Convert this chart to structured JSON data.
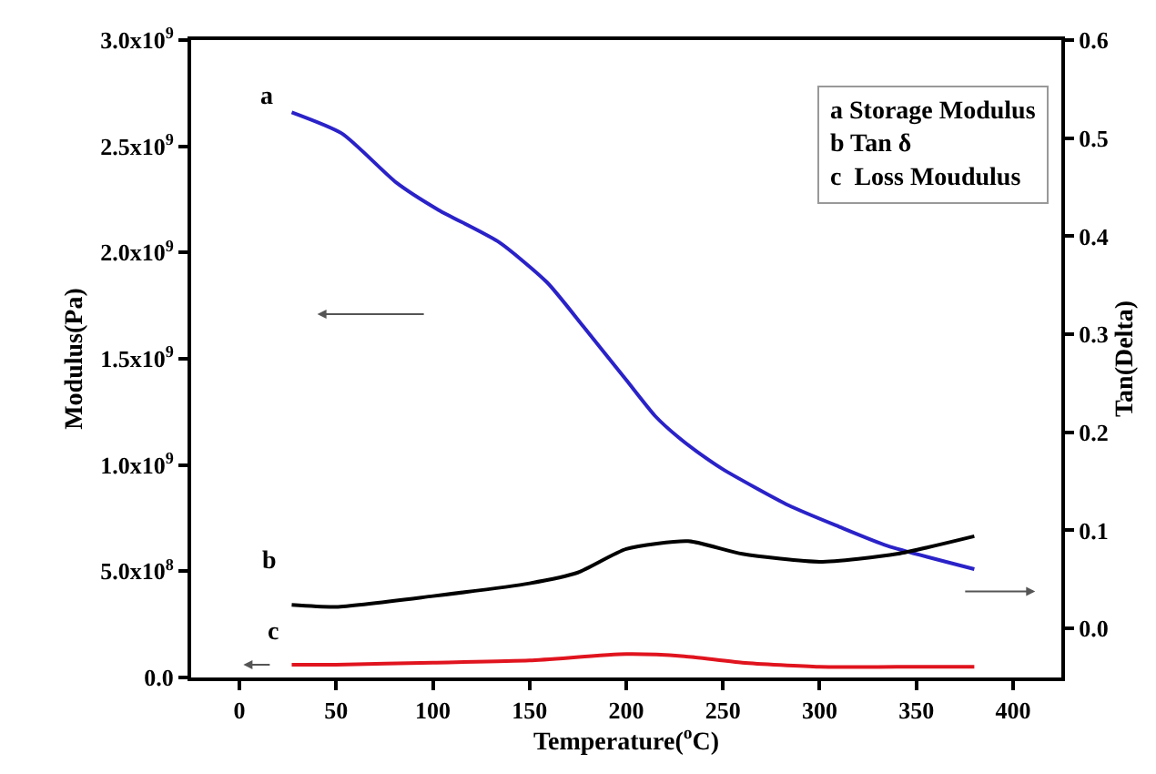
{
  "chart_data": {
    "type": "line",
    "xlabel": "Temperature($^{o}$C)",
    "ylabel": "Modulus(Pa)",
    "y2label": "Tan(Delta)",
    "xlim": [
      -25,
      425
    ],
    "xticks": [
      0,
      50,
      100,
      150,
      200,
      250,
      300,
      350,
      400
    ],
    "ylim": [
      0,
      3000000000
    ],
    "yticks": [
      {
        "value": 0,
        "label": "0.0"
      },
      {
        "value": 500000000,
        "label": "5.0x10$^{8}$"
      },
      {
        "value": 1000000000,
        "label": "1.0x10$^{9}$"
      },
      {
        "value": 1500000000,
        "label": "1.5x10$^{9}$"
      },
      {
        "value": 2000000000,
        "label": "2.0x10$^{9}$"
      },
      {
        "value": 2500000000,
        "label": "2.5x10$^{9}$"
      },
      {
        "value": 3000000000,
        "label": "3.0x10$^{9}$"
      }
    ],
    "y2lim": [
      -0.05,
      0.6
    ],
    "y2ticks": [
      {
        "value": 0,
        "label": "0.0"
      },
      0.1,
      0.2,
      0.3,
      0.4,
      0.5,
      0.6
    ],
    "series": [
      {
        "color": "#2a22c8",
        "x": [
          27,
          53,
          81,
          103,
          134,
          159,
          178,
          200,
          215,
          227,
          237,
          250,
          284,
          310,
          335,
          380
        ],
        "values": [
          2660000000,
          2560000000,
          2330000000,
          2200000000,
          2050000000,
          1860000000,
          1650000000,
          1400000000,
          1230000000,
          1130000000,
          1060000000,
          980000000,
          810000000,
          710000000,
          620000000,
          510000000
        ]
      },
      {
        "color": "#000000",
        "axis": "y2",
        "x": [
          27,
          50,
          100,
          150,
          175,
          200,
          232,
          260,
          300,
          340,
          380
        ],
        "values": [
          0.024,
          0.022,
          0.033,
          0.046,
          0.057,
          0.081,
          0.089,
          0.076,
          0.068,
          0.076,
          0.094
        ]
      },
      {
        "color": "#e0141e",
        "x": [
          27,
          50,
          100,
          150,
          200,
          230,
          260,
          300,
          340,
          380
        ],
        "values": [
          60000000,
          60000000,
          70000000,
          80000000,
          110000000,
          100000000,
          70000000,
          50000000,
          50000000,
          50000000
        ]
      }
    ],
    "annotations": [
      "a Storage Modulus",
      "b Tan δ",
      "c  Loss Moudulus",
      "a",
      "b",
      "c"
    ],
    "marker": "none",
    "line_style": "solid"
  }
}
